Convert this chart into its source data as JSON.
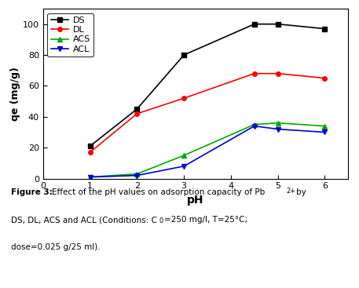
{
  "pH": [
    1,
    2,
    3,
    4.5,
    5,
    6
  ],
  "DS": [
    21,
    45,
    80,
    100,
    100,
    97
  ],
  "DL": [
    17,
    42,
    52,
    68,
    68,
    65
  ],
  "ACS": [
    1,
    3,
    15,
    35,
    36,
    34
  ],
  "ACL": [
    1,
    2,
    8,
    34,
    32,
    30
  ],
  "DS_color": "#000000",
  "DL_color": "#ff0000",
  "ACS_color": "#00aa00",
  "ACL_color": "#0000cd",
  "xlabel": "pH",
  "ylabel": "qe (mg/g)",
  "xlim": [
    0,
    6.5
  ],
  "ylim": [
    0,
    110
  ],
  "yticks": [
    0,
    20,
    40,
    60,
    80,
    100
  ],
  "xticks": [
    0,
    1,
    2,
    3,
    4,
    5,
    6
  ],
  "fig_width": 4.57,
  "fig_height": 3.67,
  "background_color": "#ffffff"
}
